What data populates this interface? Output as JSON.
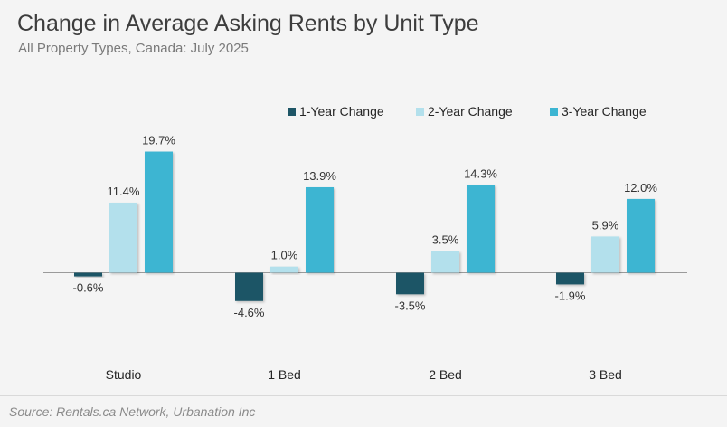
{
  "title": "Change in Average Asking Rents by Unit Type",
  "subtitle": "All Property Types, Canada: July 2025",
  "source": "Source: Rentals.ca Network, Urbanation Inc",
  "chart_data": {
    "type": "bar",
    "categories": [
      "Studio",
      "1 Bed",
      "2 Bed",
      "3 Bed"
    ],
    "series": [
      {
        "name": "1-Year Change",
        "color": "#1e5566",
        "values": [
          -0.6,
          -4.6,
          -3.5,
          -1.9
        ],
        "labels": [
          "-0.6%",
          "-4.6%",
          "-3.5%",
          "-1.9%"
        ]
      },
      {
        "name": "2-Year Change",
        "color": "#b3e0ec",
        "values": [
          11.4,
          1.0,
          3.5,
          5.9
        ],
        "labels": [
          "11.4%",
          "1.0%",
          "3.5%",
          "5.9%"
        ]
      },
      {
        "name": "3-Year Change",
        "color": "#3cb5d2",
        "values": [
          19.7,
          13.9,
          14.3,
          12.0
        ],
        "labels": [
          "19.7%",
          "13.9%",
          "14.3%",
          "12.0%"
        ]
      }
    ],
    "axis_color": "#9a9a9a",
    "legend_position": "top-right",
    "grid": false
  }
}
